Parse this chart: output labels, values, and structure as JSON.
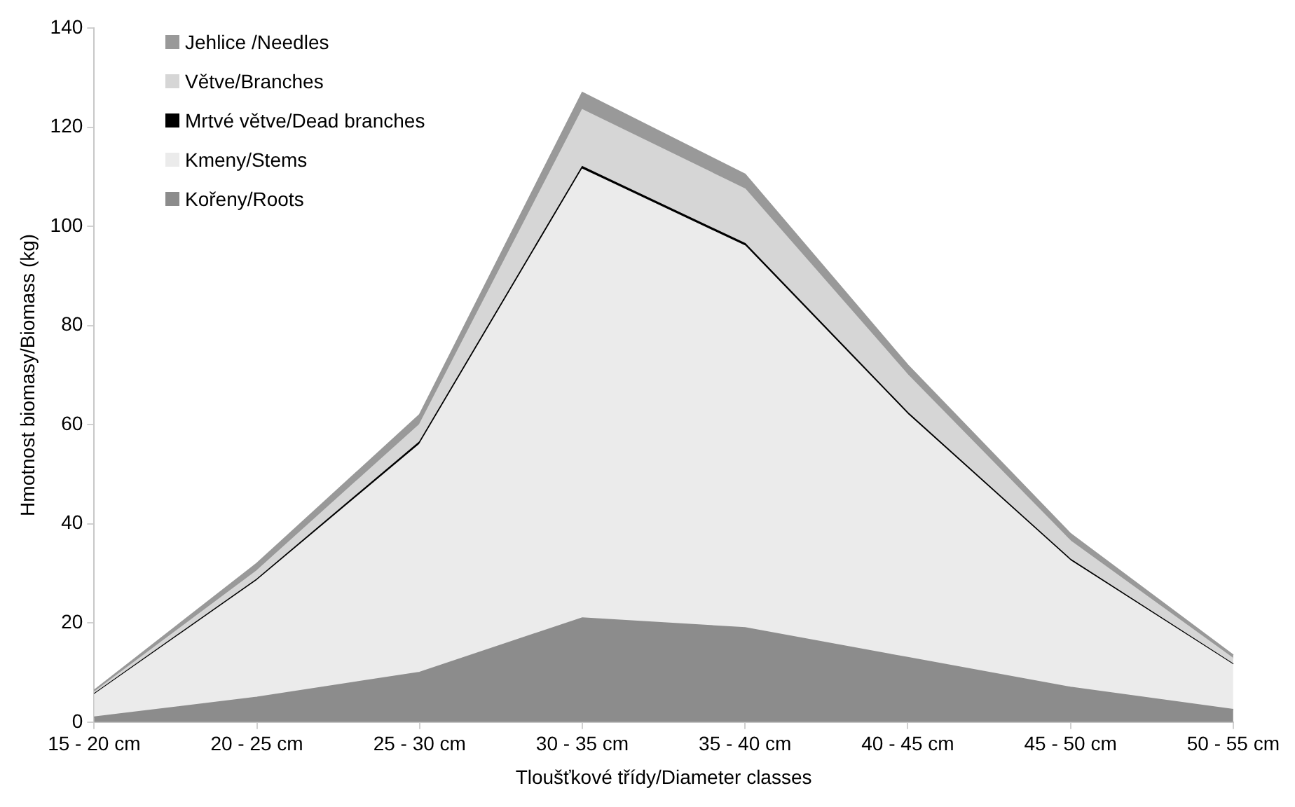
{
  "chart_data": {
    "type": "area",
    "stacked": true,
    "xlabel": "Tloušťkové třídy/Diameter classes",
    "ylabel": "Hmotnost biomasy/Biomass (kg)",
    "categories": [
      "15 - 20 cm",
      "20 - 25 cm",
      "25 - 30 cm",
      "30 - 35 cm",
      "35 - 40 cm",
      "40 - 45 cm",
      "45 - 50 cm",
      "50 - 55 cm"
    ],
    "series": [
      {
        "name": "Kořeny/Roots",
        "color": "#8c8c8c",
        "values": [
          1,
          5,
          10,
          21,
          19,
          13,
          7,
          2.5
        ]
      },
      {
        "name": "Kmeny/Stems",
        "color": "#ebebeb",
        "values": [
          4.5,
          23.5,
          46,
          90.5,
          77,
          49,
          25.5,
          9
        ]
      },
      {
        "name": "Mrtvé větve/Dead branches",
        "color": "#000000",
        "values": [
          0.2,
          0.3,
          0.5,
          0.5,
          0.5,
          0.4,
          0.3,
          0.2
        ]
      },
      {
        "name": "Větve/Branches",
        "color": "#d6d6d6",
        "values": [
          0.3,
          1.7,
          3.5,
          11.5,
          11,
          7.6,
          3.7,
          1.1
        ]
      },
      {
        "name": "Jehlice /Needles",
        "color": "#999999",
        "values": [
          0.4,
          1.5,
          2,
          3.5,
          3,
          2,
          1.5,
          0.7
        ]
      }
    ],
    "ylim": [
      0,
      140
    ],
    "yticks": [
      0,
      20,
      40,
      60,
      80,
      100,
      120,
      140
    ],
    "grid": false,
    "legend": "top left"
  }
}
